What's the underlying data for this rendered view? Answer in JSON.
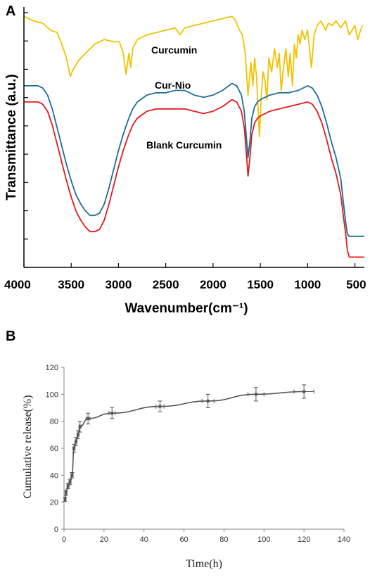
{
  "chart_data": [
    {
      "panel": "A",
      "type": "line",
      "xlabel": "Wavenumber(cm⁻¹)",
      "ylabel": "Transmittance (a.u.)",
      "xlim": [
        4000,
        400
      ],
      "xticks": [
        4000,
        3500,
        3000,
        2500,
        2000,
        1500,
        1000,
        500
      ],
      "y_axis_tick_labels": false,
      "colors": {
        "Curcumin": "#f2c200",
        "Cur-Nio": "#1f6d96",
        "Blank Curcumin": "#e31a1c"
      },
      "series": [
        {
          "name": "Curcumin",
          "points": [
            [
              4000,
              96
            ],
            [
              3900,
              94
            ],
            [
              3800,
              93
            ],
            [
              3720,
              90
            ],
            [
              3650,
              89
            ],
            [
              3600,
              84
            ],
            [
              3550,
              78
            ],
            [
              3510,
              70
            ],
            [
              3480,
              73
            ],
            [
              3420,
              77
            ],
            [
              3350,
              80
            ],
            [
              3250,
              84
            ],
            [
              3150,
              86
            ],
            [
              3050,
              85
            ],
            [
              2990,
              85
            ],
            [
              2950,
              80
            ],
            [
              2920,
              71
            ],
            [
              2890,
              80
            ],
            [
              2870,
              74
            ],
            [
              2850,
              82
            ],
            [
              2800,
              86
            ],
            [
              2700,
              88
            ],
            [
              2600,
              89
            ],
            [
              2500,
              90
            ],
            [
              2400,
              91
            ],
            [
              2350,
              88
            ],
            [
              2300,
              91
            ],
            [
              2200,
              92
            ],
            [
              2100,
              93
            ],
            [
              2000,
              94
            ],
            [
              1900,
              95
            ],
            [
              1800,
              96
            ],
            [
              1760,
              94
            ],
            [
              1720,
              90
            ],
            [
              1690,
              88
            ],
            [
              1660,
              80
            ],
            [
              1630,
              62
            ],
            [
              1600,
              76
            ],
            [
              1580,
              66
            ],
            [
              1560,
              78
            ],
            [
              1540,
              70
            ],
            [
              1510,
              44
            ],
            [
              1490,
              62
            ],
            [
              1470,
              72
            ],
            [
              1450,
              68
            ],
            [
              1430,
              60
            ],
            [
              1410,
              78
            ],
            [
              1380,
              72
            ],
            [
              1350,
              82
            ],
            [
              1320,
              74
            ],
            [
              1300,
              80
            ],
            [
              1280,
              64
            ],
            [
              1260,
              72
            ],
            [
              1230,
              82
            ],
            [
              1205,
              70
            ],
            [
              1185,
              80
            ],
            [
              1160,
              66
            ],
            [
              1140,
              84
            ],
            [
              1120,
              78
            ],
            [
              1100,
              88
            ],
            [
              1080,
              84
            ],
            [
              1060,
              90
            ],
            [
              1030,
              86
            ],
            [
              1000,
              90
            ],
            [
              960,
              74
            ],
            [
              930,
              88
            ],
            [
              900,
              92
            ],
            [
              860,
              94
            ],
            [
              810,
              90
            ],
            [
              780,
              93
            ],
            [
              740,
              92
            ],
            [
              700,
              94
            ],
            [
              650,
              91
            ],
            [
              600,
              94
            ],
            [
              560,
              88
            ],
            [
              500,
              92
            ],
            [
              470,
              86
            ],
            [
              440,
              90
            ],
            [
              420,
              92
            ]
          ]
        },
        {
          "name": "Cur-Nio",
          "points": [
            [
              4000,
              66
            ],
            [
              3850,
              66
            ],
            [
              3800,
              65
            ],
            [
              3750,
              62
            ],
            [
              3700,
              56
            ],
            [
              3650,
              48
            ],
            [
              3600,
              40
            ],
            [
              3550,
              32
            ],
            [
              3500,
              25
            ],
            [
              3450,
              19
            ],
            [
              3400,
              15
            ],
            [
              3350,
              12
            ],
            [
              3300,
              10
            ],
            [
              3250,
              10
            ],
            [
              3200,
              11
            ],
            [
              3150,
              15
            ],
            [
              3100,
              22
            ],
            [
              3050,
              30
            ],
            [
              3000,
              38
            ],
            [
              2950,
              45
            ],
            [
              2900,
              51
            ],
            [
              2850,
              56
            ],
            [
              2800,
              59
            ],
            [
              2700,
              62
            ],
            [
              2600,
              63
            ],
            [
              2500,
              63
            ],
            [
              2400,
              64
            ],
            [
              2300,
              64
            ],
            [
              2200,
              62
            ],
            [
              2100,
              61
            ],
            [
              2000,
              62
            ],
            [
              1900,
              64
            ],
            [
              1800,
              67
            ],
            [
              1750,
              66
            ],
            [
              1700,
              62
            ],
            [
              1670,
              55
            ],
            [
              1650,
              45
            ],
            [
              1630,
              35
            ],
            [
              1610,
              42
            ],
            [
              1590,
              52
            ],
            [
              1560,
              57
            ],
            [
              1530,
              59
            ],
            [
              1500,
              60
            ],
            [
              1450,
              61
            ],
            [
              1400,
              62
            ],
            [
              1300,
              63
            ],
            [
              1200,
              63
            ],
            [
              1100,
              64
            ],
            [
              1000,
              66
            ],
            [
              950,
              65
            ],
            [
              900,
              62
            ],
            [
              850,
              57
            ],
            [
              800,
              50
            ],
            [
              750,
              42
            ],
            [
              700,
              35
            ],
            [
              650,
              26
            ],
            [
              620,
              15
            ],
            [
              600,
              8
            ],
            [
              580,
              2
            ],
            [
              560,
              1
            ],
            [
              500,
              1
            ],
            [
              400,
              1
            ]
          ]
        },
        {
          "name": "Blank Curcumin",
          "points": [
            [
              4000,
              59
            ],
            [
              3850,
              59
            ],
            [
              3800,
              58
            ],
            [
              3750,
              55
            ],
            [
              3700,
              49
            ],
            [
              3650,
              41
            ],
            [
              3600,
              33
            ],
            [
              3550,
              25
            ],
            [
              3500,
              18
            ],
            [
              3450,
              12
            ],
            [
              3400,
              8
            ],
            [
              3350,
              5
            ],
            [
              3300,
              3
            ],
            [
              3250,
              3
            ],
            [
              3200,
              4
            ],
            [
              3150,
              8
            ],
            [
              3100,
              15
            ],
            [
              3050,
              23
            ],
            [
              3000,
              31
            ],
            [
              2950,
              38
            ],
            [
              2900,
              44
            ],
            [
              2850,
              49
            ],
            [
              2800,
              52
            ],
            [
              2700,
              55
            ],
            [
              2600,
              56
            ],
            [
              2500,
              56
            ],
            [
              2400,
              56
            ],
            [
              2300,
              56
            ],
            [
              2200,
              55
            ],
            [
              2100,
              54
            ],
            [
              2000,
              55
            ],
            [
              1900,
              57
            ],
            [
              1800,
              60
            ],
            [
              1750,
              59
            ],
            [
              1700,
              55
            ],
            [
              1670,
              48
            ],
            [
              1650,
              38
            ],
            [
              1630,
              27
            ],
            [
              1610,
              35
            ],
            [
              1590,
              45
            ],
            [
              1560,
              50
            ],
            [
              1530,
              52
            ],
            [
              1500,
              53
            ],
            [
              1450,
              54
            ],
            [
              1400,
              55
            ],
            [
              1300,
              56
            ],
            [
              1200,
              57
            ],
            [
              1100,
              58
            ],
            [
              1000,
              59
            ],
            [
              950,
              58
            ],
            [
              900,
              55
            ],
            [
              850,
              50
            ],
            [
              800,
              43
            ],
            [
              750,
              35
            ],
            [
              700,
              28
            ],
            [
              650,
              19
            ],
            [
              620,
              9
            ],
            [
              600,
              3
            ],
            [
              580,
              -5
            ],
            [
              560,
              -8
            ],
            [
              500,
              -8
            ],
            [
              400,
              -8
            ]
          ]
        }
      ],
      "annotations": [
        "Curcumin",
        "Cur-Nio",
        "Blank Curcumin"
      ]
    },
    {
      "panel": "B",
      "type": "scatter",
      "xlabel": "Time(h)",
      "ylabel": "Cumulative release(%)",
      "xlim": [
        0,
        140
      ],
      "ylim": [
        0,
        120
      ],
      "xticks": [
        0,
        20,
        40,
        60,
        80,
        100,
        120,
        140
      ],
      "yticks": [
        0,
        20,
        40,
        60,
        80,
        100,
        120
      ],
      "line_color": "#555555",
      "points": [
        {
          "x": 0.5,
          "y": 22,
          "yerr": 1.5,
          "xerr": 0.3
        },
        {
          "x": 1,
          "y": 27,
          "yerr": 2,
          "xerr": 0.4
        },
        {
          "x": 2,
          "y": 32,
          "yerr": 2,
          "xerr": 0.5
        },
        {
          "x": 3,
          "y": 35,
          "yerr": 2,
          "xerr": 0.5
        },
        {
          "x": 4,
          "y": 40,
          "yerr": 2,
          "xerr": 0.5
        },
        {
          "x": 5,
          "y": 60,
          "yerr": 3,
          "xerr": 0.5
        },
        {
          "x": 6,
          "y": 65,
          "yerr": 3,
          "xerr": 0.5
        },
        {
          "x": 7,
          "y": 70,
          "yerr": 3,
          "xerr": 0.5
        },
        {
          "x": 8,
          "y": 76,
          "yerr": 4,
          "xerr": 0.5
        },
        {
          "x": 12,
          "y": 82,
          "yerr": 4,
          "xerr": 1
        },
        {
          "x": 24,
          "y": 86,
          "yerr": 4,
          "xerr": 1.5
        },
        {
          "x": 48,
          "y": 91,
          "yerr": 4,
          "xerr": 2
        },
        {
          "x": 72,
          "y": 95,
          "yerr": 5,
          "xerr": 3
        },
        {
          "x": 96,
          "y": 100,
          "yerr": 5,
          "xerr": 4
        },
        {
          "x": 120,
          "y": 102,
          "yerr": 5,
          "xerr": 5
        }
      ]
    }
  ],
  "labels": {
    "panel_a": "A",
    "panel_b": "B"
  }
}
